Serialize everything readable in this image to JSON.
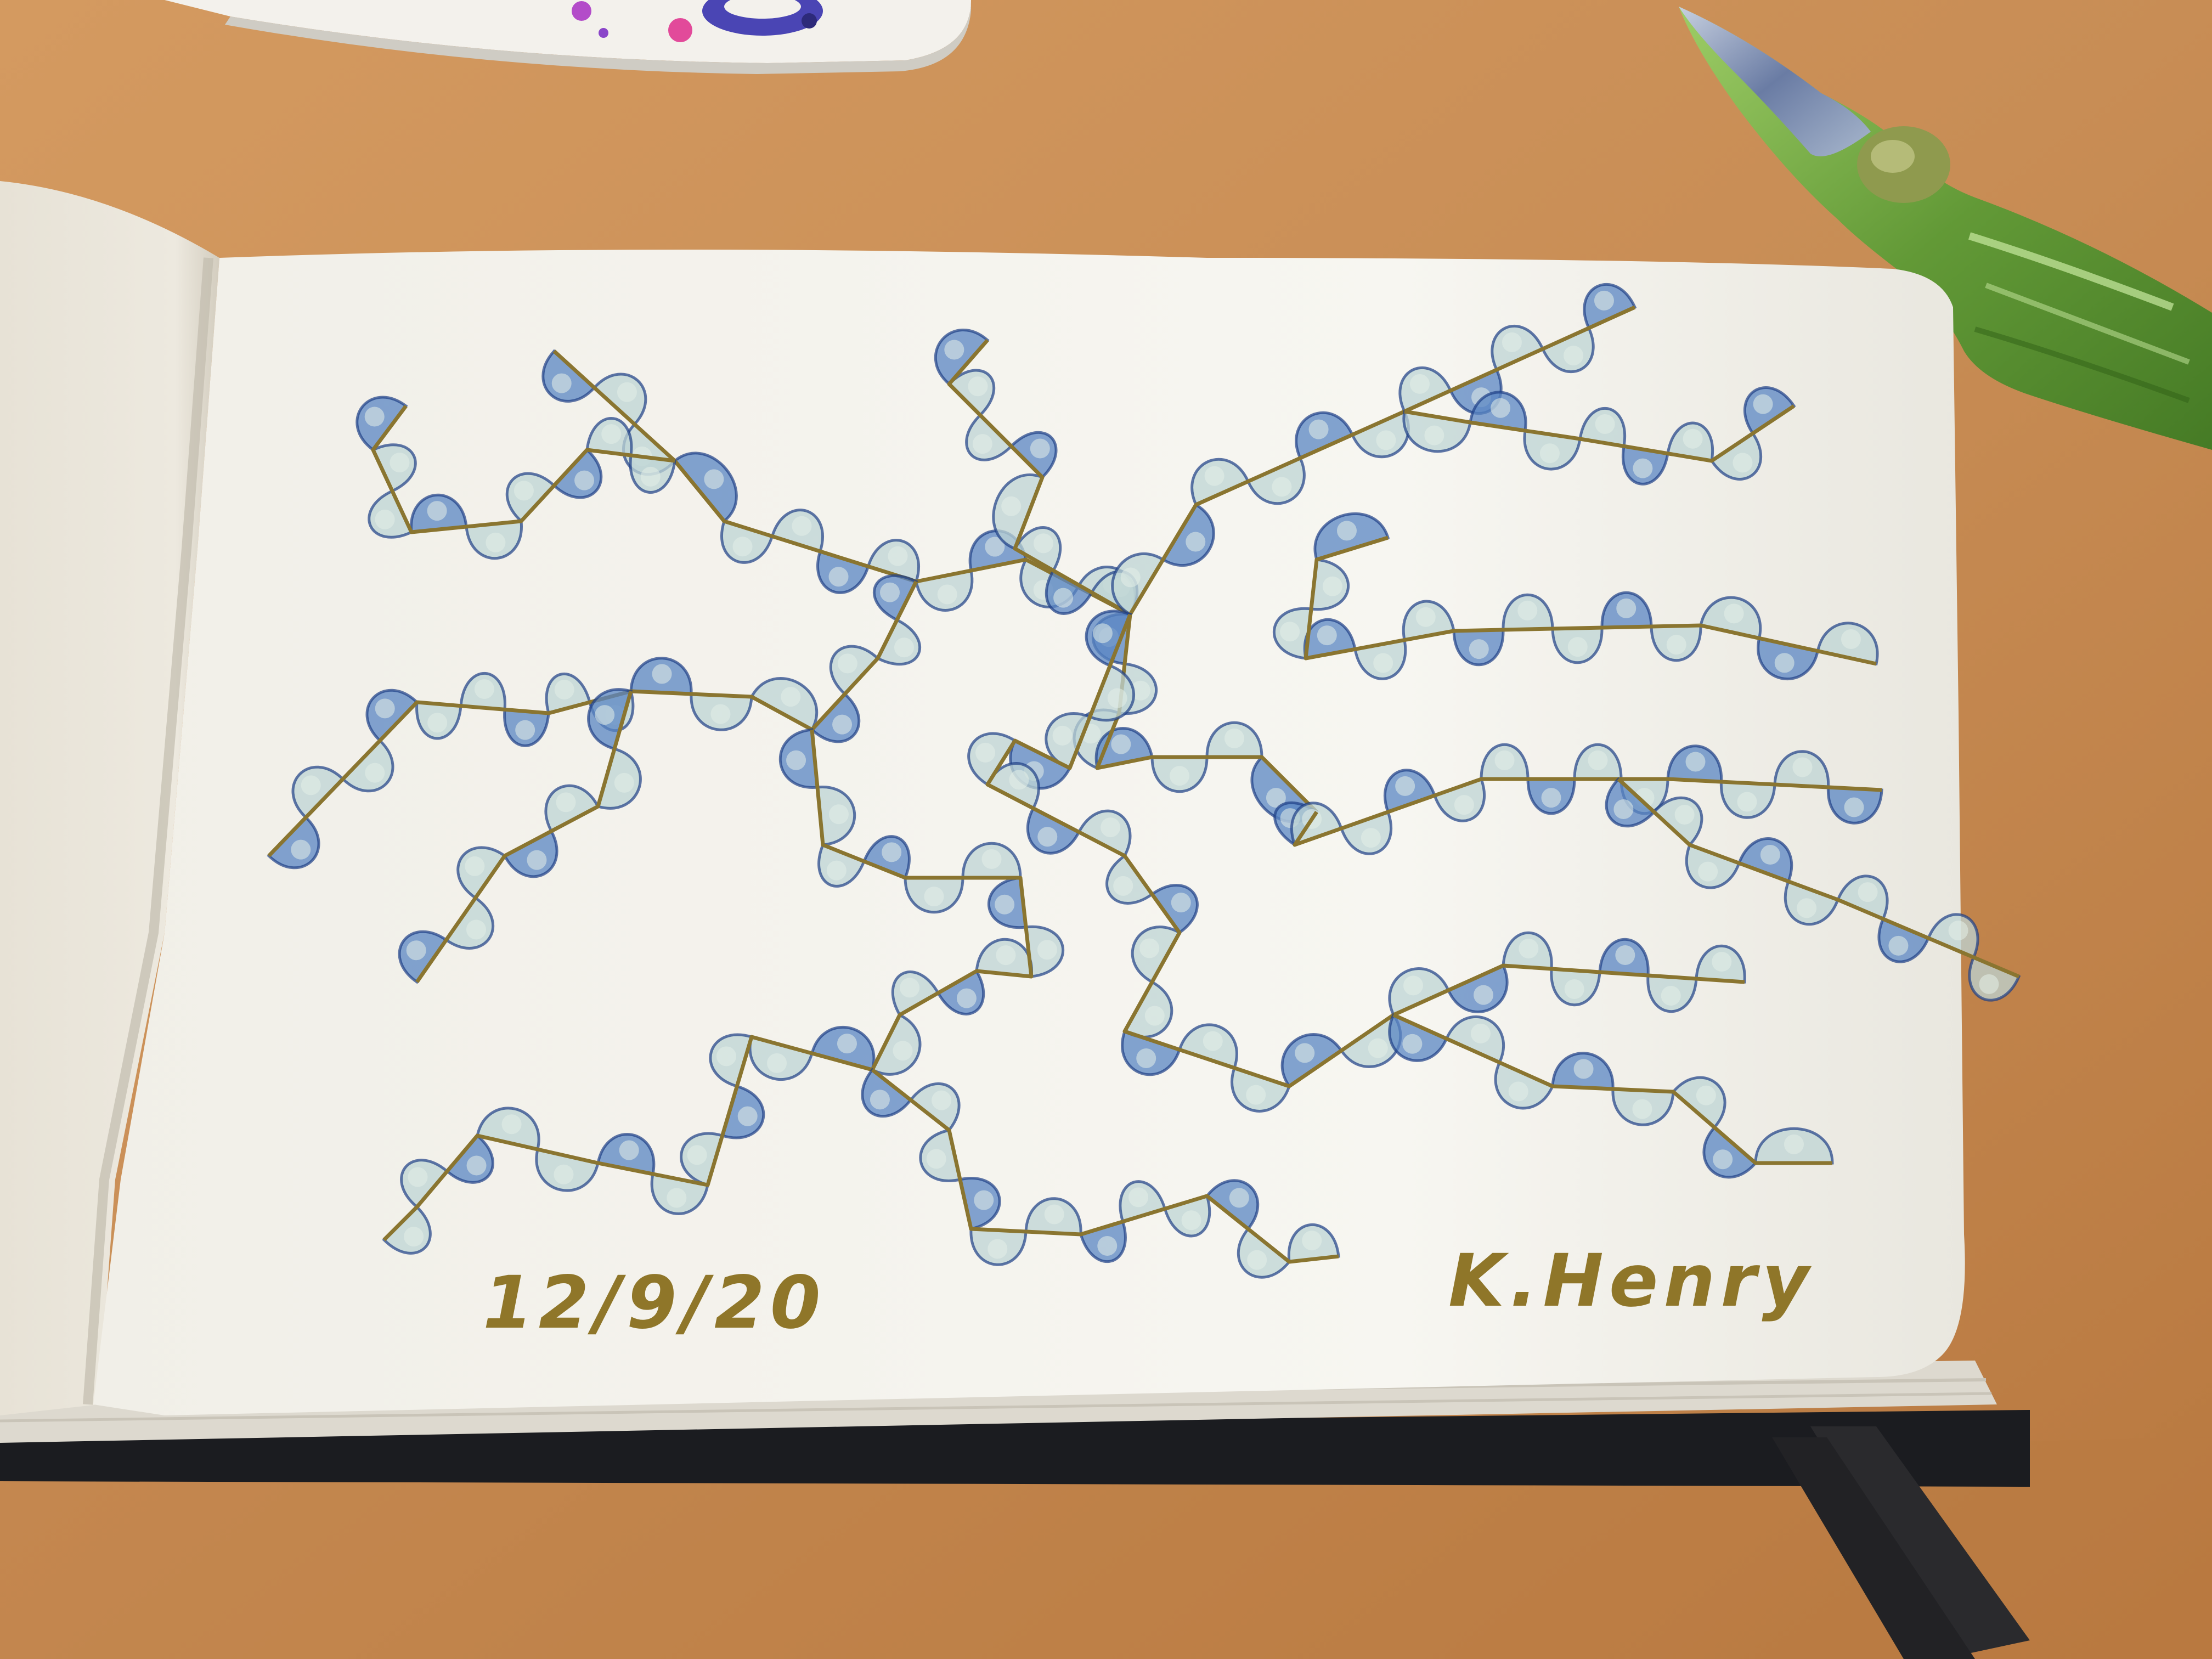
{
  "scene": {
    "description_free": true,
    "elements": {
      "table": "wooden-table",
      "sketchbook": "open-sketchbook",
      "pen": "glass-dip-pen",
      "palette": "paint-palette"
    }
  },
  "drawing": {
    "date": "12/9/20",
    "signature": "K.Henry"
  },
  "colors": {
    "table": "#c88d55",
    "paper": "#f5f4ef",
    "ink_line": "#8a7530",
    "wash_light": "#bed4d4",
    "wash_blue": "#5a86c3",
    "ink_dark_blue": "#1e3f86",
    "pen_green": "#6ea645",
    "book_cover": "#1b1c20"
  }
}
